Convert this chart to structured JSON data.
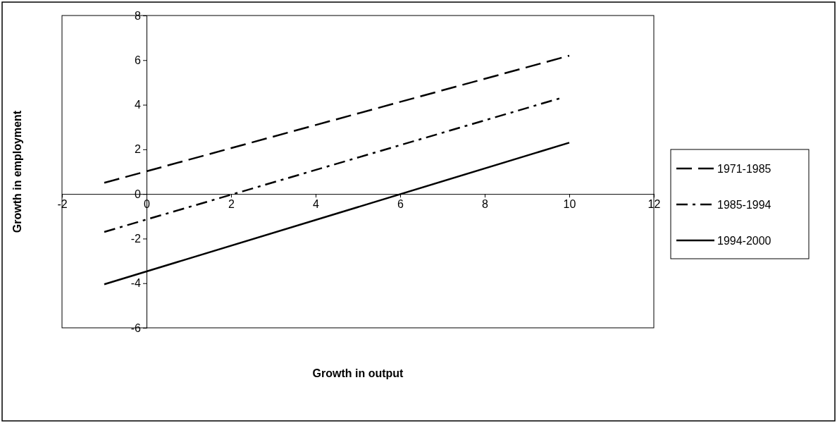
{
  "chart_data": {
    "type": "line",
    "xlabel": "Growth in output",
    "ylabel": "Growth in employment",
    "xlim": [
      -2,
      12
    ],
    "ylim": [
      -6,
      8
    ],
    "xticks": [
      -2,
      0,
      2,
      4,
      6,
      8,
      10,
      12
    ],
    "yticks": [
      -6,
      -4,
      -2,
      0,
      2,
      4,
      6,
      8
    ],
    "grid": false,
    "legend": "right",
    "marker": "none",
    "series": [
      {
        "name": "1971-1985",
        "color": "#000000",
        "line_style": "dashed",
        "x": [
          -1,
          10
        ],
        "values": [
          0.5,
          6.2
        ]
      },
      {
        "name": "1985-1994",
        "color": "#000000",
        "line_style": "dashdot",
        "x": [
          -1,
          9.8
        ],
        "values": [
          -1.7,
          4.3
        ]
      },
      {
        "name": "1994-2000",
        "color": "#000000",
        "line_style": "solid",
        "x": [
          -1,
          10
        ],
        "values": [
          -4.05,
          2.3
        ]
      }
    ]
  }
}
